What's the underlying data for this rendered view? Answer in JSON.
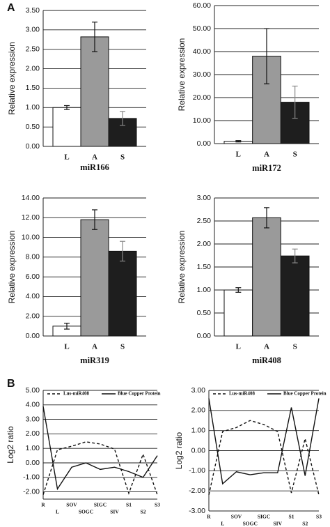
{
  "chart_data": [
    {
      "type": "bar",
      "panel": "A",
      "title": "miR166",
      "ylabel": "Relative expression",
      "categories": [
        "L",
        "A",
        "S"
      ],
      "values": [
        1.0,
        2.82,
        0.72
      ],
      "errors": [
        0.05,
        0.38,
        0.18
      ],
      "colors": [
        "#ffffff",
        "#9a9a9a",
        "#1e1e1e"
      ],
      "ylim": [
        0,
        3.5
      ],
      "yticks": [
        {
          "value": 0,
          "label": "0.00"
        },
        {
          "value": 0.5,
          "label": "0.50"
        },
        {
          "value": 1,
          "label": "1.00"
        },
        {
          "value": 1.5,
          "label": "1.50"
        },
        {
          "value": 2,
          "label": "2.00"
        },
        {
          "value": 2.5,
          "label": "2.50"
        },
        {
          "value": 3,
          "label": "3.00"
        },
        {
          "value": 3.5,
          "label": "3.50"
        }
      ],
      "grid": true
    },
    {
      "type": "bar",
      "title": "miR172",
      "ylabel": "Relative expression",
      "categories": [
        "L",
        "A",
        "S"
      ],
      "values": [
        1.0,
        38.0,
        18.0
      ],
      "errors": [
        0.3,
        12.0,
        7.0
      ],
      "colors": [
        "#ffffff",
        "#9a9a9a",
        "#1e1e1e"
      ],
      "ylim": [
        0,
        60
      ],
      "yticks": [
        {
          "value": 0,
          "label": "0.00"
        },
        {
          "value": 10,
          "label": "10.00"
        },
        {
          "value": 20,
          "label": "20.00"
        },
        {
          "value": 30,
          "label": "30.00"
        },
        {
          "value": 40,
          "label": "40.00"
        },
        {
          "value": 50,
          "label": "50.00"
        },
        {
          "value": 60,
          "label": "60.00"
        }
      ],
      "grid": true
    },
    {
      "type": "bar",
      "title": "miR319",
      "ylabel": "Relative expression",
      "categories": [
        "L",
        "A",
        "S"
      ],
      "values": [
        1.0,
        11.8,
        8.6
      ],
      "errors": [
        0.3,
        1.0,
        1.0
      ],
      "colors": [
        "#ffffff",
        "#9a9a9a",
        "#1e1e1e"
      ],
      "ylim": [
        0,
        14
      ],
      "yticks": [
        {
          "value": 0,
          "label": "0.00"
        },
        {
          "value": 2,
          "label": "2.00"
        },
        {
          "value": 4,
          "label": "4.00"
        },
        {
          "value": 6,
          "label": "6.00"
        },
        {
          "value": 8,
          "label": "8.00"
        },
        {
          "value": 10,
          "label": "10.00"
        },
        {
          "value": 12,
          "label": "12.00"
        },
        {
          "value": 14,
          "label": "14.00"
        }
      ],
      "grid": true
    },
    {
      "type": "bar",
      "title": "miR408",
      "ylabel": "Relative expression",
      "categories": [
        "L",
        "A",
        "S"
      ],
      "values": [
        1.0,
        2.57,
        1.74
      ],
      "errors": [
        0.05,
        0.22,
        0.15
      ],
      "colors": [
        "#ffffff",
        "#9a9a9a",
        "#1e1e1e"
      ],
      "ylim": [
        0,
        3
      ],
      "yticks": [
        {
          "value": 0,
          "label": "0.00"
        },
        {
          "value": 0.5,
          "label": "0.50"
        },
        {
          "value": 1,
          "label": "1.00"
        },
        {
          "value": 1.5,
          "label": "1.50"
        },
        {
          "value": 2,
          "label": "2.00"
        },
        {
          "value": 2.5,
          "label": "2.50"
        },
        {
          "value": 3,
          "label": "3.00"
        }
      ],
      "grid": true
    },
    {
      "type": "line",
      "panel": "B",
      "ylabel": "Log2 ratio",
      "categories": [
        "R",
        "L",
        "SOV",
        "SOGC",
        "SIGC",
        "SIV",
        "S1",
        "S2",
        "S3"
      ],
      "series": [
        {
          "name": "Lus-miR408",
          "color": "#111111",
          "dash": true,
          "values": [
            -2.2,
            0.9,
            1.15,
            1.45,
            1.3,
            0.95,
            -2.1,
            0.6,
            -2.2
          ]
        },
        {
          "name": "Blue Copper Protein",
          "color": "#111111",
          "dash": false,
          "values": [
            3.9,
            -1.8,
            -0.3,
            0.0,
            -0.45,
            -0.3,
            -0.6,
            -1.0,
            0.5
          ]
        }
      ],
      "ylim": [
        -2.5,
        5
      ],
      "yticks": [
        {
          "value": -2,
          "label": "-2.00"
        },
        {
          "value": -1,
          "label": "-1.00"
        },
        {
          "value": 0,
          "label": "0.00"
        },
        {
          "value": 1,
          "label": "1.00"
        },
        {
          "value": 2,
          "label": "2.00"
        },
        {
          "value": 3,
          "label": "3.00"
        },
        {
          "value": 4,
          "label": "4.00"
        },
        {
          "value": 5,
          "label": "5.00"
        }
      ],
      "grid": true
    },
    {
      "type": "line",
      "ylabel": "Log2 ratio",
      "categories": [
        "R",
        "L",
        "SOV",
        "SOGC",
        "SIGC",
        "SIV",
        "S1",
        "S2",
        "S3"
      ],
      "series": [
        {
          "name": "Lus-miR408",
          "color": "#111111",
          "dash": true,
          "values": [
            -2.2,
            0.95,
            1.15,
            1.5,
            1.3,
            0.95,
            -2.1,
            0.6,
            -2.2
          ]
        },
        {
          "name": "Blue Copper Protein",
          "color": "#111111",
          "dash": false,
          "values": [
            2.6,
            -1.65,
            -1.05,
            -1.2,
            -1.1,
            -1.1,
            2.15,
            -1.25,
            2.6
          ]
        }
      ],
      "ylim": [
        -3,
        3
      ],
      "yticks": [
        {
          "value": -3,
          "label": "-3.00"
        },
        {
          "value": -2,
          "label": "-2.00"
        },
        {
          "value": -1,
          "label": "-1.00"
        },
        {
          "value": 0,
          "label": "0.00"
        },
        {
          "value": 1,
          "label": "1.00"
        },
        {
          "value": 2,
          "label": "2.00"
        },
        {
          "value": 3,
          "label": "3.00"
        }
      ],
      "grid": true
    }
  ]
}
